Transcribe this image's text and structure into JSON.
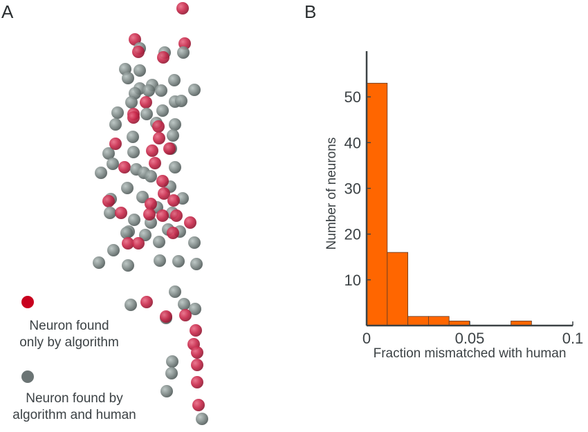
{
  "panels": {
    "a_label": "A",
    "b_label": "B"
  },
  "legend": {
    "items": [
      {
        "label_line1": "Neuron found",
        "label_line2": "only by algorithm",
        "color": "#c8001e"
      },
      {
        "label_line1": "Neuron found by",
        "label_line2": "algorithm and human",
        "color": "#6b7474"
      }
    ]
  },
  "colors": {
    "algorithm_only": "#c8284a",
    "algorithm_and_human": "#7f8a88",
    "bars": "#ff6600",
    "axis": "#3c4245"
  },
  "chart_data": {
    "type": "bar",
    "subtype": "histogram",
    "xlabel": "Fraction mismatched with human",
    "ylabel": "Number of neurons",
    "bin_width": 0.01,
    "bin_starts": [
      0,
      0.01,
      0.02,
      0.03,
      0.04,
      0.05,
      0.06,
      0.07,
      0.08,
      0.09
    ],
    "values": [
      53,
      16,
      2,
      2,
      1,
      0,
      0,
      1,
      0,
      0
    ],
    "xlim": [
      0,
      0.1
    ],
    "ylim": [
      0,
      60
    ],
    "xticks": [
      {
        "value": 0,
        "label": "0"
      },
      {
        "value": 0.05,
        "label": "0.05"
      },
      {
        "value": 0.1,
        "label": "0.1"
      }
    ],
    "yticks": [
      {
        "value": 10,
        "label": "10"
      },
      {
        "value": 20,
        "label": "20"
      },
      {
        "value": 30,
        "label": "30"
      },
      {
        "value": 40,
        "label": "40"
      },
      {
        "value": 50,
        "label": "50"
      }
    ],
    "grid": false,
    "bar_color": "#ff6600"
  }
}
